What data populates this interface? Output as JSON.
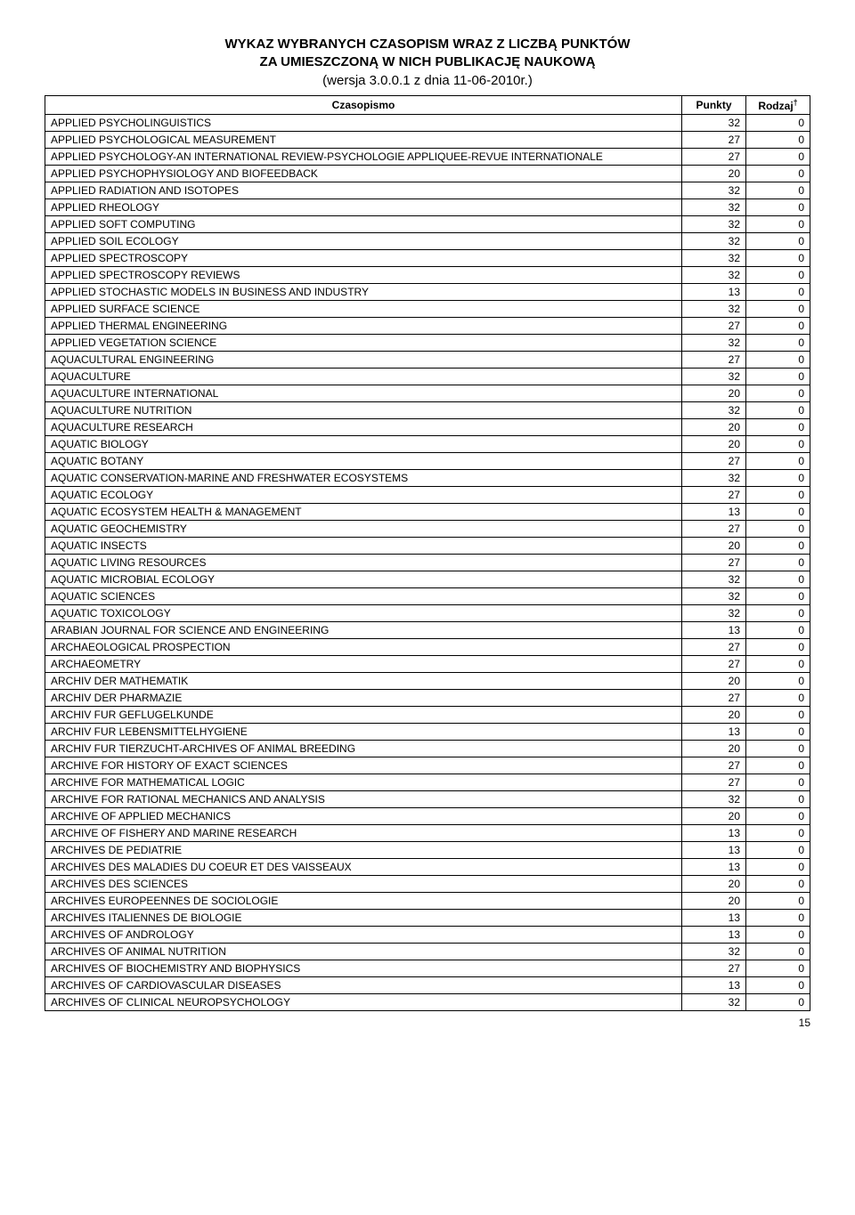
{
  "header": {
    "line1": "WYKAZ WYBRANYCH CZASOPISM WRAZ Z LICZBĄ PUNKTÓW",
    "line2": "ZA UMIESZCZONĄ W NICH PUBLIKACJĘ NAUKOWĄ",
    "line3": "(wersja 3.0.0.1 z dnia 11-06-2010r.)"
  },
  "columns": {
    "czasopismo": "Czasopismo",
    "punkty": "Punkty",
    "rodzaj": "Rodzaj"
  },
  "rodzaj_sup": "†",
  "rows": [
    {
      "name": "APPLIED PSYCHOLINGUISTICS",
      "punkty": "32",
      "rodzaj": "0"
    },
    {
      "name": "APPLIED PSYCHOLOGICAL MEASUREMENT",
      "punkty": "27",
      "rodzaj": "0"
    },
    {
      "name": "APPLIED PSYCHOLOGY-AN INTERNATIONAL REVIEW-PSYCHOLOGIE APPLIQUEE-REVUE INTERNATIONALE",
      "punkty": "27",
      "rodzaj": "0"
    },
    {
      "name": "APPLIED PSYCHOPHYSIOLOGY AND BIOFEEDBACK",
      "punkty": "20",
      "rodzaj": "0"
    },
    {
      "name": "APPLIED RADIATION AND ISOTOPES",
      "punkty": "32",
      "rodzaj": "0"
    },
    {
      "name": "APPLIED RHEOLOGY",
      "punkty": "32",
      "rodzaj": "0"
    },
    {
      "name": "APPLIED SOFT COMPUTING",
      "punkty": "32",
      "rodzaj": "0"
    },
    {
      "name": "APPLIED SOIL ECOLOGY",
      "punkty": "32",
      "rodzaj": "0"
    },
    {
      "name": "APPLIED SPECTROSCOPY",
      "punkty": "32",
      "rodzaj": "0"
    },
    {
      "name": "APPLIED SPECTROSCOPY REVIEWS",
      "punkty": "32",
      "rodzaj": "0"
    },
    {
      "name": "APPLIED STOCHASTIC MODELS IN BUSINESS AND INDUSTRY",
      "punkty": "13",
      "rodzaj": "0"
    },
    {
      "name": "APPLIED SURFACE SCIENCE",
      "punkty": "32",
      "rodzaj": "0"
    },
    {
      "name": "APPLIED THERMAL ENGINEERING",
      "punkty": "27",
      "rodzaj": "0"
    },
    {
      "name": "APPLIED VEGETATION SCIENCE",
      "punkty": "32",
      "rodzaj": "0"
    },
    {
      "name": "AQUACULTURAL ENGINEERING",
      "punkty": "27",
      "rodzaj": "0"
    },
    {
      "name": "AQUACULTURE",
      "punkty": "32",
      "rodzaj": "0"
    },
    {
      "name": "AQUACULTURE INTERNATIONAL",
      "punkty": "20",
      "rodzaj": "0"
    },
    {
      "name": "AQUACULTURE NUTRITION",
      "punkty": "32",
      "rodzaj": "0"
    },
    {
      "name": "AQUACULTURE RESEARCH",
      "punkty": "20",
      "rodzaj": "0"
    },
    {
      "name": "AQUATIC BIOLOGY",
      "punkty": "20",
      "rodzaj": "0"
    },
    {
      "name": "AQUATIC BOTANY",
      "punkty": "27",
      "rodzaj": "0"
    },
    {
      "name": "AQUATIC CONSERVATION-MARINE AND FRESHWATER ECOSYSTEMS",
      "punkty": "32",
      "rodzaj": "0"
    },
    {
      "name": "AQUATIC ECOLOGY",
      "punkty": "27",
      "rodzaj": "0"
    },
    {
      "name": "AQUATIC ECOSYSTEM HEALTH & MANAGEMENT",
      "punkty": "13",
      "rodzaj": "0"
    },
    {
      "name": "AQUATIC GEOCHEMISTRY",
      "punkty": "27",
      "rodzaj": "0"
    },
    {
      "name": "AQUATIC INSECTS",
      "punkty": "20",
      "rodzaj": "0"
    },
    {
      "name": "AQUATIC LIVING RESOURCES",
      "punkty": "27",
      "rodzaj": "0"
    },
    {
      "name": "AQUATIC MICROBIAL ECOLOGY",
      "punkty": "32",
      "rodzaj": "0"
    },
    {
      "name": "AQUATIC SCIENCES",
      "punkty": "32",
      "rodzaj": "0"
    },
    {
      "name": "AQUATIC TOXICOLOGY",
      "punkty": "32",
      "rodzaj": "0"
    },
    {
      "name": "ARABIAN JOURNAL FOR SCIENCE AND ENGINEERING",
      "punkty": "13",
      "rodzaj": "0"
    },
    {
      "name": "ARCHAEOLOGICAL PROSPECTION",
      "punkty": "27",
      "rodzaj": "0"
    },
    {
      "name": "ARCHAEOMETRY",
      "punkty": "27",
      "rodzaj": "0"
    },
    {
      "name": "ARCHIV DER MATHEMATIK",
      "punkty": "20",
      "rodzaj": "0"
    },
    {
      "name": "ARCHIV DER PHARMAZIE",
      "punkty": "27",
      "rodzaj": "0"
    },
    {
      "name": "ARCHIV FUR GEFLUGELKUNDE",
      "punkty": "20",
      "rodzaj": "0"
    },
    {
      "name": "ARCHIV FUR LEBENSMITTELHYGIENE",
      "punkty": "13",
      "rodzaj": "0"
    },
    {
      "name": "ARCHIV FUR TIERZUCHT-ARCHIVES OF ANIMAL BREEDING",
      "punkty": "20",
      "rodzaj": "0"
    },
    {
      "name": "ARCHIVE FOR HISTORY OF EXACT SCIENCES",
      "punkty": "27",
      "rodzaj": "0"
    },
    {
      "name": "ARCHIVE FOR MATHEMATICAL LOGIC",
      "punkty": "27",
      "rodzaj": "0"
    },
    {
      "name": "ARCHIVE FOR RATIONAL MECHANICS AND ANALYSIS",
      "punkty": "32",
      "rodzaj": "0"
    },
    {
      "name": "ARCHIVE OF APPLIED MECHANICS",
      "punkty": "20",
      "rodzaj": "0"
    },
    {
      "name": "ARCHIVE OF FISHERY AND MARINE RESEARCH",
      "punkty": "13",
      "rodzaj": "0"
    },
    {
      "name": "ARCHIVES DE PEDIATRIE",
      "punkty": "13",
      "rodzaj": "0"
    },
    {
      "name": "ARCHIVES DES MALADIES DU COEUR ET DES VAISSEAUX",
      "punkty": "13",
      "rodzaj": "0"
    },
    {
      "name": "ARCHIVES DES SCIENCES",
      "punkty": "20",
      "rodzaj": "0"
    },
    {
      "name": "ARCHIVES EUROPEENNES DE SOCIOLOGIE",
      "punkty": "20",
      "rodzaj": "0"
    },
    {
      "name": "ARCHIVES ITALIENNES DE BIOLOGIE",
      "punkty": "13",
      "rodzaj": "0"
    },
    {
      "name": "ARCHIVES OF ANDROLOGY",
      "punkty": "13",
      "rodzaj": "0"
    },
    {
      "name": "ARCHIVES OF ANIMAL NUTRITION",
      "punkty": "32",
      "rodzaj": "0"
    },
    {
      "name": "ARCHIVES OF BIOCHEMISTRY AND BIOPHYSICS",
      "punkty": "27",
      "rodzaj": "0"
    },
    {
      "name": "ARCHIVES OF CARDIOVASCULAR DISEASES",
      "punkty": "13",
      "rodzaj": "0"
    },
    {
      "name": "ARCHIVES OF CLINICAL NEUROPSYCHOLOGY",
      "punkty": "32",
      "rodzaj": "0"
    }
  ],
  "page_number": "15"
}
